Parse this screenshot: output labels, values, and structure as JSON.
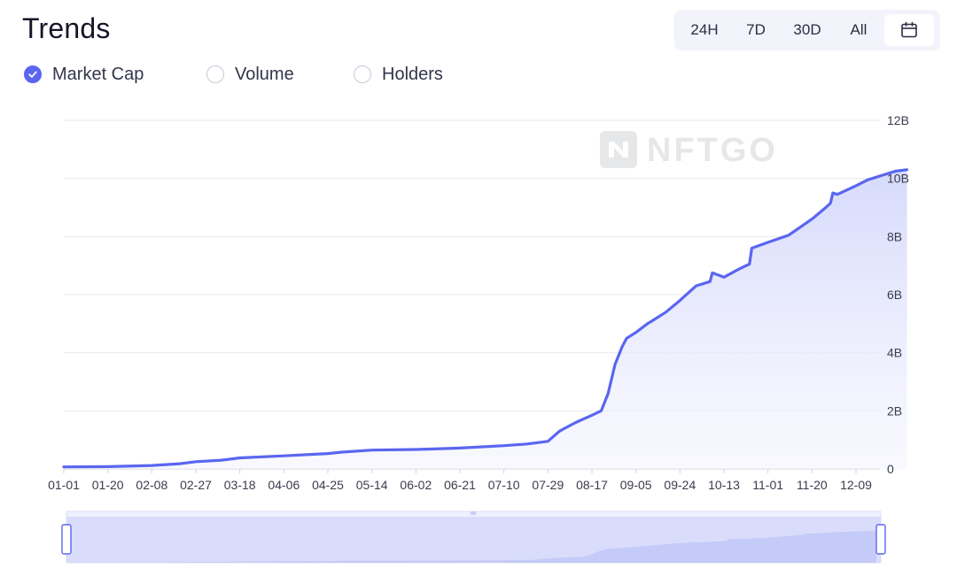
{
  "header": {
    "title": "Trends",
    "ranges": [
      "24H",
      "7D",
      "30D",
      "All"
    ],
    "calendar_icon": "calendar-icon"
  },
  "metrics": [
    {
      "label": "Market Cap",
      "checked": true
    },
    {
      "label": "Volume",
      "checked": false
    },
    {
      "label": "Holders",
      "checked": false
    }
  ],
  "watermark": "NFTGO",
  "colors": {
    "accent": "#5a66f0",
    "area_top": "#d4d8fb",
    "grid": "#e6e8ef"
  },
  "chart_data": {
    "type": "area",
    "title": "",
    "xlabel": "",
    "ylabel": "",
    "y_axis_position": "right",
    "ylim": [
      0,
      12
    ],
    "y_unit": "B",
    "yticks": [
      "0",
      "2B",
      "4B",
      "6B",
      "8B",
      "10B",
      "12B"
    ],
    "xticks": [
      "01-01",
      "01-20",
      "02-08",
      "02-27",
      "03-18",
      "04-06",
      "04-25",
      "05-14",
      "06-02",
      "06-21",
      "07-10",
      "07-29",
      "08-17",
      "09-05",
      "09-24",
      "10-13",
      "11-01",
      "11-20",
      "12-09"
    ],
    "grid": true,
    "series": [
      {
        "x": [
          "01-01",
          "01-20",
          "02-08",
          "02-20",
          "02-27",
          "03-10",
          "03-18",
          "04-06",
          "04-25",
          "05-01",
          "05-14",
          "06-02",
          "06-21",
          "07-10",
          "07-20",
          "07-29",
          "08-03",
          "08-10",
          "08-17",
          "08-21",
          "08-24",
          "08-27",
          "08-30",
          "09-01",
          "09-05",
          "09-10",
          "09-12",
          "09-18",
          "09-24",
          "10-01",
          "10-07",
          "10-08",
          "10-13",
          "10-20",
          "10-24",
          "10-25",
          "11-01",
          "11-10",
          "11-20",
          "11-26",
          "11-28",
          "11-29",
          "12-01",
          "12-09",
          "12-14",
          "12-20",
          "12-26",
          "12-31"
        ],
        "values": [
          0.07,
          0.08,
          0.12,
          0.18,
          0.25,
          0.3,
          0.38,
          0.45,
          0.53,
          0.58,
          0.65,
          0.67,
          0.72,
          0.8,
          0.86,
          0.95,
          1.3,
          1.6,
          1.85,
          2.0,
          2.6,
          3.6,
          4.2,
          4.5,
          4.7,
          5.0,
          5.1,
          5.4,
          5.8,
          6.3,
          6.45,
          6.75,
          6.6,
          6.9,
          7.05,
          7.6,
          7.8,
          8.05,
          8.6,
          9.0,
          9.15,
          9.5,
          9.45,
          9.75,
          9.95,
          10.1,
          10.25,
          10.3
        ]
      }
    ]
  }
}
